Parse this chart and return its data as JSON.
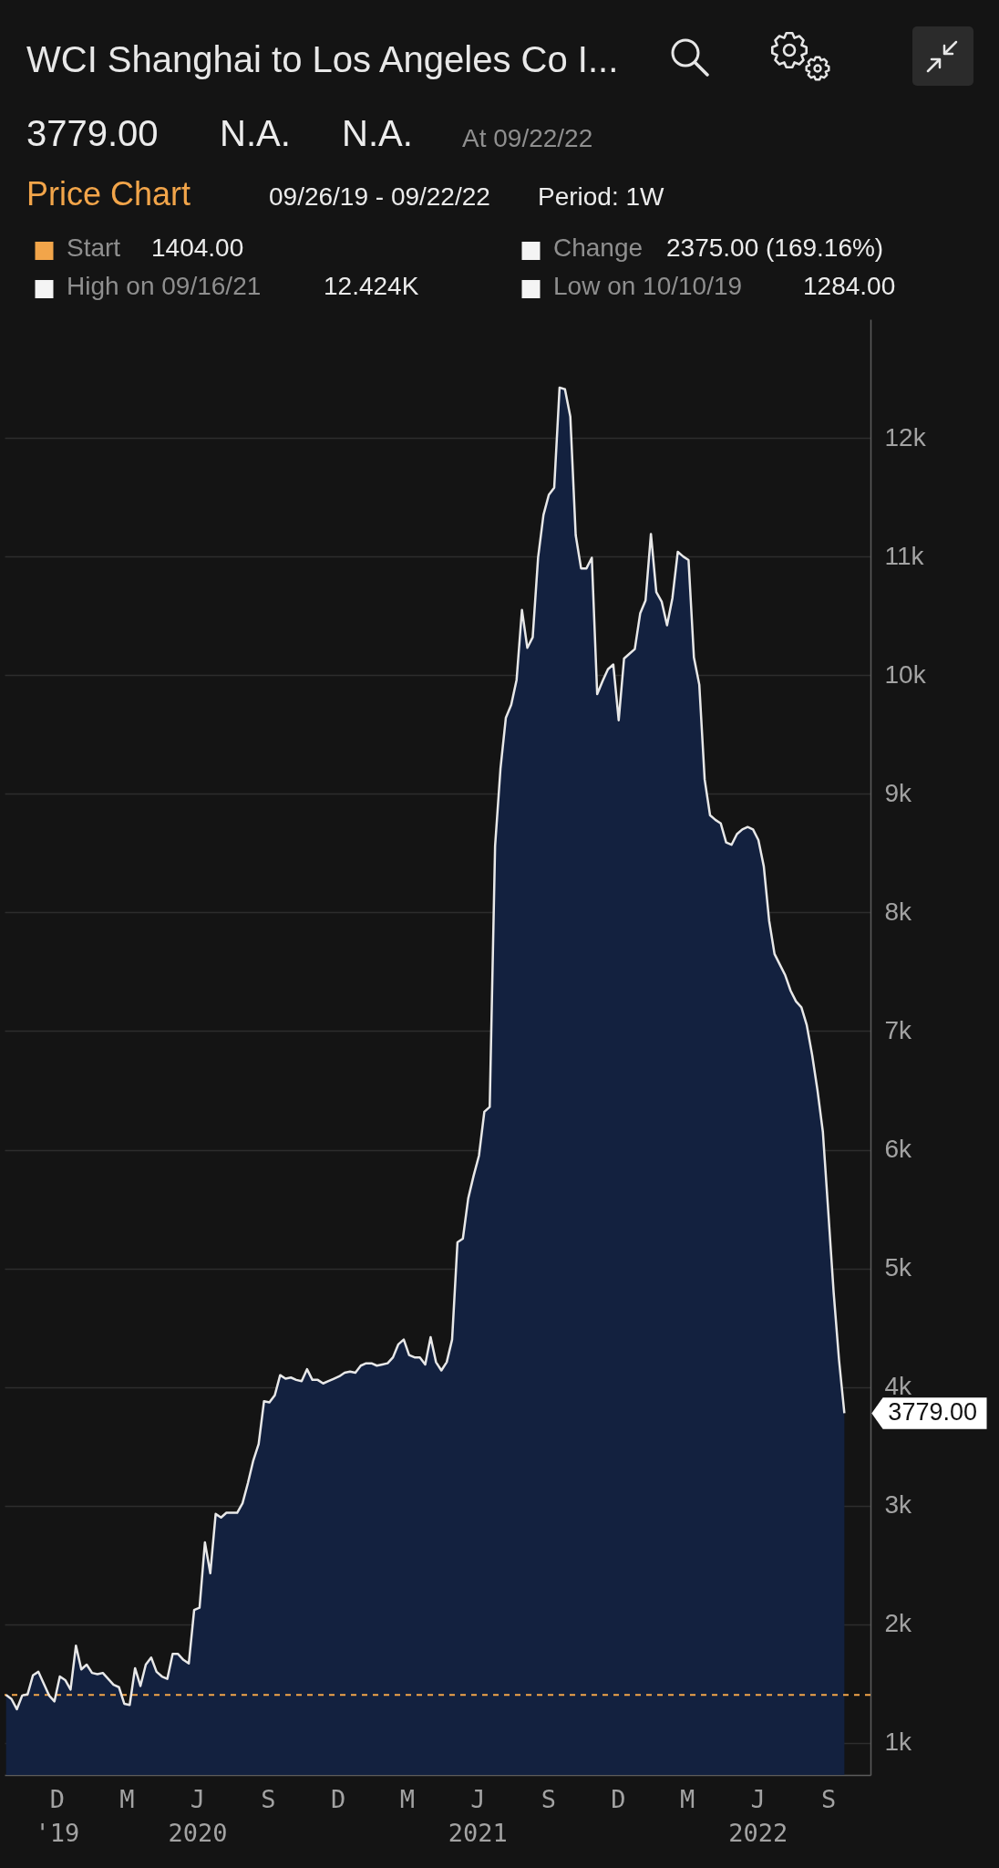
{
  "chart_data": {
    "type": "area",
    "title": "WCI Shanghai to Los Angeles Co I...",
    "x": [
      "2019-09-26",
      "2019-10-03",
      "2019-10-10",
      "2019-10-17",
      "2019-10-24",
      "2019-10-31",
      "2019-11-07",
      "2019-11-14",
      "2019-11-21",
      "2019-11-28",
      "2019-12-05",
      "2019-12-12",
      "2019-12-19",
      "2019-12-26",
      "2020-01-02",
      "2020-01-09",
      "2020-01-16",
      "2020-01-23",
      "2020-01-30",
      "2020-02-06",
      "2020-02-13",
      "2020-02-20",
      "2020-02-27",
      "2020-03-05",
      "2020-03-12",
      "2020-03-19",
      "2020-03-26",
      "2020-04-02",
      "2020-04-09",
      "2020-04-16",
      "2020-04-23",
      "2020-04-30",
      "2020-05-07",
      "2020-05-14",
      "2020-05-21",
      "2020-05-28",
      "2020-06-04",
      "2020-06-11",
      "2020-06-18",
      "2020-06-25",
      "2020-07-02",
      "2020-07-09",
      "2020-07-16",
      "2020-07-23",
      "2020-07-30",
      "2020-08-06",
      "2020-08-13",
      "2020-08-20",
      "2020-08-27",
      "2020-09-03",
      "2020-09-10",
      "2020-09-17",
      "2020-09-24",
      "2020-10-01",
      "2020-10-08",
      "2020-10-15",
      "2020-10-22",
      "2020-10-29",
      "2020-11-05",
      "2020-11-12",
      "2020-11-19",
      "2020-11-26",
      "2020-12-03",
      "2020-12-10",
      "2020-12-17",
      "2020-12-24",
      "2020-12-31",
      "2021-01-07",
      "2021-01-14",
      "2021-01-21",
      "2021-01-28",
      "2021-02-04",
      "2021-02-11",
      "2021-02-18",
      "2021-02-25",
      "2021-03-04",
      "2021-03-11",
      "2021-03-18",
      "2021-03-25",
      "2021-04-01",
      "2021-04-08",
      "2021-04-15",
      "2021-04-22",
      "2021-04-29",
      "2021-05-06",
      "2021-05-13",
      "2021-05-20",
      "2021-05-27",
      "2021-06-03",
      "2021-06-10",
      "2021-06-17",
      "2021-06-24",
      "2021-07-01",
      "2021-07-08",
      "2021-07-15",
      "2021-07-22",
      "2021-07-29",
      "2021-08-05",
      "2021-08-12",
      "2021-08-19",
      "2021-08-26",
      "2021-09-02",
      "2021-09-09",
      "2021-09-16",
      "2021-09-23",
      "2021-09-30",
      "2021-10-07",
      "2021-10-14",
      "2021-10-21",
      "2021-10-28",
      "2021-11-04",
      "2021-11-11",
      "2021-11-18",
      "2021-11-25",
      "2021-12-02",
      "2021-12-09",
      "2021-12-16",
      "2021-12-23",
      "2021-12-30",
      "2022-01-06",
      "2022-01-13",
      "2022-01-20",
      "2022-01-27",
      "2022-02-03",
      "2022-02-10",
      "2022-02-17",
      "2022-02-24",
      "2022-03-03",
      "2022-03-10",
      "2022-03-17",
      "2022-03-24",
      "2022-03-31",
      "2022-04-07",
      "2022-04-14",
      "2022-04-21",
      "2022-04-28",
      "2022-05-05",
      "2022-05-12",
      "2022-05-19",
      "2022-05-26",
      "2022-06-02",
      "2022-06-09",
      "2022-06-16",
      "2022-06-23",
      "2022-06-30",
      "2022-07-07",
      "2022-07-14",
      "2022-07-21",
      "2022-07-28",
      "2022-08-04",
      "2022-08-11",
      "2022-08-18",
      "2022-08-25",
      "2022-09-01",
      "2022-09-08",
      "2022-09-15",
      "2022-09-22"
    ],
    "values": [
      1404,
      1370,
      1284,
      1400,
      1410,
      1570,
      1600,
      1500,
      1400,
      1350,
      1560,
      1530,
      1450,
      1820,
      1620,
      1660,
      1590,
      1580,
      1590,
      1540,
      1490,
      1470,
      1330,
      1320,
      1630,
      1480,
      1660,
      1720,
      1600,
      1560,
      1540,
      1750,
      1750,
      1700,
      1670,
      2120,
      2140,
      2690,
      2430,
      2930,
      2900,
      2940,
      2940,
      2940,
      3020,
      3190,
      3380,
      3520,
      3880,
      3870,
      3930,
      4100,
      4070,
      4080,
      4060,
      4050,
      4150,
      4060,
      4060,
      4030,
      4050,
      4070,
      4090,
      4120,
      4130,
      4120,
      4180,
      4200,
      4200,
      4180,
      4190,
      4200,
      4250,
      4360,
      4400,
      4270,
      4250,
      4250,
      4190,
      4420,
      4210,
      4140,
      4210,
      4400,
      5220,
      5250,
      5590,
      5780,
      5950,
      6320,
      6360,
      8560,
      9210,
      9640,
      9750,
      9960,
      10550,
      10230,
      10320,
      10990,
      11350,
      11520,
      11580,
      12424,
      12410,
      12180,
      11180,
      10900,
      10900,
      10990,
      9840,
      9950,
      10050,
      10090,
      9620,
      10140,
      10180,
      10220,
      10520,
      10630,
      11190,
      10700,
      10620,
      10420,
      10650,
      11040,
      11000,
      10970,
      10150,
      9920,
      9120,
      8820,
      8780,
      8750,
      8590,
      8570,
      8660,
      8700,
      8720,
      8700,
      8610,
      8390,
      7930,
      7650,
      7560,
      7470,
      7340,
      7250,
      7200,
      7050,
      6800,
      6500,
      6150,
      5480,
      4800,
      4230,
      3779
    ],
    "color": "#13213f",
    "xlim": [
      "2019-09-24",
      "2022-10-26"
    ],
    "xticks": [
      {
        "value": "2019-12",
        "label": "D\n'19"
      },
      {
        "value": "2020-03",
        "label": "M"
      },
      {
        "value": "2020-06",
        "label": "J\n2020"
      },
      {
        "value": "2020-09",
        "label": "S"
      },
      {
        "value": "2020-12",
        "label": "D"
      },
      {
        "value": "2021-03",
        "label": "M"
      },
      {
        "value": "2021-06",
        "label": "J\n2021"
      },
      {
        "value": "2021-09",
        "label": "S"
      },
      {
        "value": "2021-12",
        "label": "D"
      },
      {
        "value": "2022-03",
        "label": "M"
      },
      {
        "value": "2022-06",
        "label": "J\n2022"
      },
      {
        "value": "2022-09",
        "label": "S"
      }
    ],
    "ylim": [
      730,
      13000
    ],
    "yticks": [
      {
        "value": 1000,
        "label": "1k"
      },
      {
        "value": 2000,
        "label": "2k"
      },
      {
        "value": 3000,
        "label": "3k"
      },
      {
        "value": 4000,
        "label": "4k"
      },
      {
        "value": 5000,
        "label": "5k"
      },
      {
        "value": 6000,
        "label": "6k"
      },
      {
        "value": 7000,
        "label": "7k"
      },
      {
        "value": 8000,
        "label": "8k"
      },
      {
        "value": 9000,
        "label": "9k"
      },
      {
        "value": 10000,
        "label": "10k"
      },
      {
        "value": 11000,
        "label": "11k"
      },
      {
        "value": 12000,
        "label": "12k"
      }
    ],
    "grid": "y",
    "ref_lines": [
      {
        "axis": "y",
        "value": 1404,
        "color": "#f2a54a",
        "line_style": "dashed"
      }
    ],
    "annotations": [
      "3779.00",
      "N.A.",
      "N.A.",
      "At 09/22/22",
      "Price Chart",
      "09/26/19 - 09/22/22",
      "Period: 1W",
      "Start",
      "1404.00",
      "Change",
      "2375.00 (169.16%)",
      "High on 09/16/21",
      "12.424K",
      "Low on 10/10/19",
      "1284.00",
      {
        "text": "3779.00",
        "x": "2022-09-22",
        "y": 3779
      }
    ]
  }
}
